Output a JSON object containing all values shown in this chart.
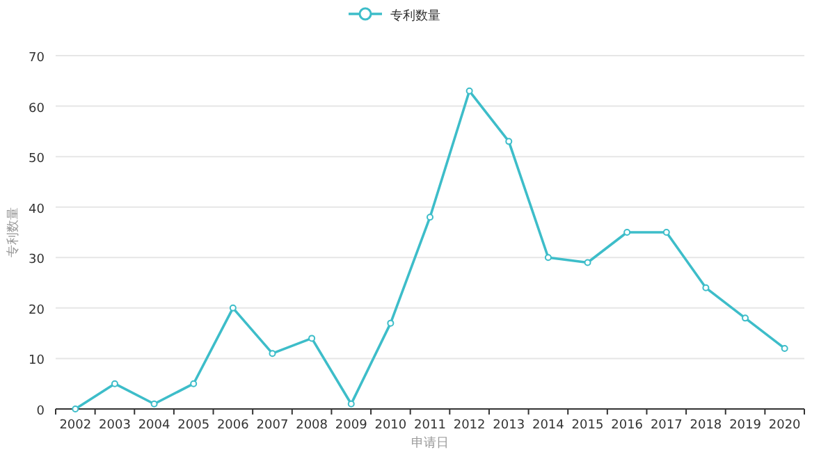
{
  "chart_data": {
    "type": "line",
    "categories": [
      "2002",
      "2003",
      "2004",
      "2005",
      "2006",
      "2007",
      "2008",
      "2009",
      "2010",
      "2011",
      "2012",
      "2013",
      "2014",
      "2015",
      "2016",
      "2017",
      "2018",
      "2019",
      "2020"
    ],
    "series": [
      {
        "name": "专利数量",
        "color": "#3dbdc9",
        "values": [
          0,
          5,
          1,
          5,
          20,
          11,
          14,
          1,
          17,
          38,
          63,
          53,
          30,
          29,
          35,
          35,
          24,
          18,
          12
        ]
      }
    ],
    "ylim": [
      0,
      70
    ],
    "yticks": [
      0,
      10,
      20,
      30,
      40,
      50,
      60,
      70
    ],
    "xlabel": "申请日",
    "ylabel": "专利数量",
    "grid": "y",
    "legend": "top",
    "marker": "circle",
    "line_style": "solid"
  }
}
